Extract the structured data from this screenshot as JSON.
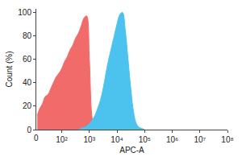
{
  "chart_data": {
    "type": "area",
    "x_label": "APC-A",
    "y_label": "Count (%)",
    "log": "x",
    "grid": false,
    "xlim": [
      12,
      100000000
    ],
    "xticks": [
      {
        "value": 100,
        "label": "10²"
      },
      {
        "value": 1000,
        "label": "10³"
      },
      {
        "value": 10000,
        "label": "10⁴"
      },
      {
        "value": 100000,
        "label": "10⁵"
      },
      {
        "value": 1000000,
        "label": "10⁶"
      },
      {
        "value": 10000000,
        "label": "10⁷"
      },
      {
        "value": 100000000,
        "label": "10⁸"
      }
    ],
    "annotations": [
      {
        "text": "0"
      }
    ],
    "ylim": [
      0,
      103
    ],
    "yticks": [
      0,
      20,
      40,
      60,
      80,
      100
    ],
    "series": [
      {
        "color": "#f26b6b",
        "x": [
          13,
          16,
          20,
          25,
          32,
          40,
          50,
          63,
          79,
          100,
          126,
          158,
          200,
          251,
          316,
          398,
          501,
          631,
          794,
          1000,
          1259,
          1585
        ],
        "values": [
          12,
          18,
          22,
          28,
          30,
          35,
          40,
          45,
          48,
          52,
          58,
          62,
          68,
          72,
          78,
          82,
          88,
          95,
          97,
          60,
          10,
          0
        ]
      },
      {
        "color": "#4cc3ee",
        "x": [
          398,
          501,
          631,
          794,
          1000,
          1259,
          1585,
          1995,
          2512,
          3162,
          3981,
          5012,
          6310,
          7943,
          10000,
          12589,
          15849,
          19953,
          25119,
          31623,
          39811,
          50119,
          63096,
          79433,
          100000
        ],
        "values": [
          0,
          1,
          2,
          3,
          5,
          8,
          12,
          18,
          25,
          35,
          48,
          60,
          70,
          80,
          90,
          98,
          100,
          85,
          60,
          35,
          15,
          5,
          2,
          1,
          0
        ]
      }
    ]
  }
}
